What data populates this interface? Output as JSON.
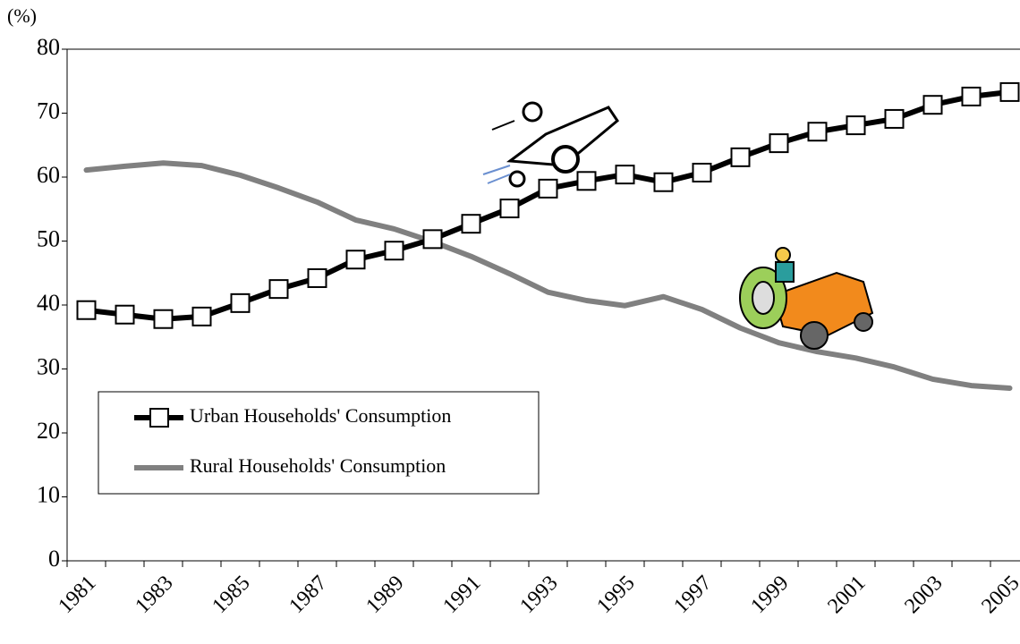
{
  "chart_data": {
    "type": "line",
    "ylabel": "(%)",
    "categories": [
      "1981",
      null,
      "1983",
      null,
      "1985",
      null,
      "1987",
      null,
      "1989",
      null,
      "1991",
      null,
      "1993",
      null,
      "1995",
      null,
      "1997",
      null,
      "1999",
      null,
      "2001",
      null,
      "2003",
      null,
      "2005"
    ],
    "series": [
      {
        "name": "Urban Households' Consumption",
        "color": "#000000",
        "marker": "square",
        "values": [
          39.2,
          38.5,
          37.8,
          38.2,
          40.3,
          42.5,
          44.2,
          47.1,
          48.5,
          50.3,
          52.7,
          55.1,
          58.2,
          59.4,
          60.4,
          59.2,
          60.7,
          63.1,
          65.3,
          67.1,
          68.1,
          69.1,
          71.3,
          72.6,
          73.3
        ]
      },
      {
        "name": "Rural Households' Consumption",
        "color": "#808080",
        "values": [
          61.1,
          61.7,
          62.2,
          61.8,
          60.3,
          58.3,
          56.1,
          53.3,
          51.9,
          49.9,
          47.6,
          44.9,
          42.0,
          40.7,
          39.9,
          41.3,
          39.3,
          36.4,
          34.1,
          32.7,
          31.7,
          30.3,
          28.4,
          27.4,
          27.0
        ]
      }
    ],
    "ylim": [
      0,
      80
    ],
    "yticks": [
      0,
      10,
      20,
      30,
      40,
      50,
      60,
      70,
      80
    ],
    "grid": false
  }
}
